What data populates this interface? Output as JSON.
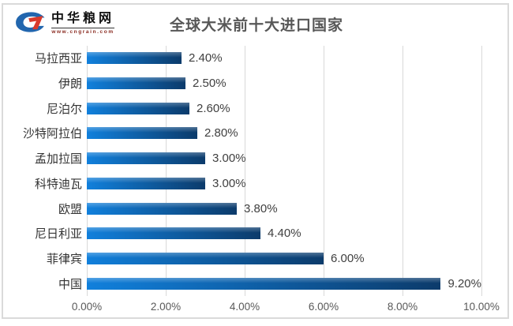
{
  "header": {
    "logo_name": "中华粮网",
    "logo_url_text": "www.cngrain.com",
    "title": "全球大米前十大进口国家"
  },
  "colors": {
    "bar_gradient_start": "#1180DC",
    "bar_gradient_end": "#0C3B6B",
    "gridline": "#d9d9d9",
    "title_text": "#575757",
    "value_text": "#3f3f3f",
    "axis_text": "#595959",
    "logo_blue": "#2266AE",
    "logo_red": "#D93A2B",
    "frame_border": "#dadada"
  },
  "chart_data": {
    "type": "bar",
    "orientation": "horizontal",
    "title": "全球大米前十大进口国家",
    "categories": [
      "马拉西亚",
      "伊朗",
      "尼泊尔",
      "沙特阿拉伯",
      "孟加拉国",
      "科特迪瓦",
      "欧盟",
      "尼日利亚",
      "菲律宾",
      "中国"
    ],
    "values": [
      2.4,
      2.5,
      2.6,
      2.8,
      3.0,
      3.0,
      3.8,
      4.4,
      6.0,
      9.2
    ],
    "value_labels": [
      "2.40%",
      "2.50%",
      "2.60%",
      "2.80%",
      "3.00%",
      "3.00%",
      "3.80%",
      "4.40%",
      "6.00%",
      "9.20%"
    ],
    "x_ticks": [
      "0.00%",
      "2.00%",
      "4.00%",
      "6.00%",
      "8.00%",
      "10.00%"
    ],
    "xlim": [
      0,
      10
    ],
    "grid": true,
    "legend": false,
    "xlabel": "",
    "ylabel": ""
  }
}
